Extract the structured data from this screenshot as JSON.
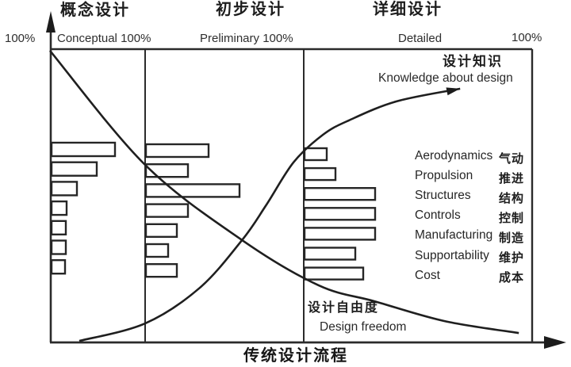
{
  "phases": [
    {
      "name_zh": "概念设计",
      "name_en": "Conceptual",
      "max_label": "100%"
    },
    {
      "name_zh": "初步设计",
      "name_en": "Preliminary",
      "max_label": "100%"
    },
    {
      "name_zh": "详细设计",
      "name_en": "Detailed",
      "max_label": "100%"
    }
  ],
  "y_axis": {
    "max_label": "100%"
  },
  "x_axis": {
    "label_zh": "传统设计流程"
  },
  "curve_labels": {
    "knowledge": {
      "zh": "设计知识",
      "en": "Knowledge about design"
    },
    "freedom": {
      "zh": "设计自由度",
      "en": "Design freedom"
    }
  },
  "disciplines": [
    {
      "en": "Aerodynamics",
      "zh": "气动"
    },
    {
      "en": "Propulsion",
      "zh": "推进"
    },
    {
      "en": "Structures",
      "zh": "结构"
    },
    {
      "en": "Controls",
      "zh": "控制"
    },
    {
      "en": "Manufacturing",
      "zh": "制造"
    },
    {
      "en": "Supportability",
      "zh": "维护"
    },
    {
      "en": "Cost",
      "zh": "成本"
    }
  ],
  "chart_data": {
    "type": "bar",
    "orientation": "horizontal",
    "title": "传统设计流程 (Traditional design process)",
    "categories": [
      "Aerodynamics",
      "Propulsion",
      "Structures",
      "Controls",
      "Manufacturing",
      "Supportability",
      "Cost"
    ],
    "phases": [
      "Conceptual",
      "Preliminary",
      "Detailed"
    ],
    "values_unit": "percent of phase column width, estimated from pixels (bars unlabeled)",
    "series": [
      {
        "name": "Conceptual",
        "values": [
          40,
          28.5,
          16,
          9.5,
          9,
          9,
          8.5
        ]
      },
      {
        "name": "Preliminary",
        "values": [
          39.5,
          26.5,
          59,
          26.5,
          19.5,
          14,
          19.5
        ]
      },
      {
        "name": "Detailed",
        "values": [
          14,
          19.5,
          44.5,
          44.5,
          44.5,
          32,
          37
        ]
      }
    ],
    "curves": [
      {
        "name": "Design freedom",
        "x_pct": [
          0,
          19.8,
          39.9,
          55.8,
          67.5,
          81.9,
          97.4
        ],
        "y_pct": [
          99.5,
          60.5,
          34.9,
          19.5,
          14,
          7.3,
          3.2
        ],
        "arrow_end": false
      },
      {
        "name": "Knowledge about design",
        "x_pct": [
          6.1,
          19.8,
          31.1,
          39.9,
          44.8,
          50.6,
          56.7,
          62.1,
          72.0,
          85.2
        ],
        "y_pct": [
          0.5,
          6.5,
          18.6,
          34.9,
          46.5,
          61.4,
          70.8,
          75.7,
          82.2,
          86.5
        ],
        "arrow_end": true
      }
    ],
    "y_axis_range": [
      "0%",
      "100%"
    ],
    "legend": "none",
    "grid": false
  }
}
